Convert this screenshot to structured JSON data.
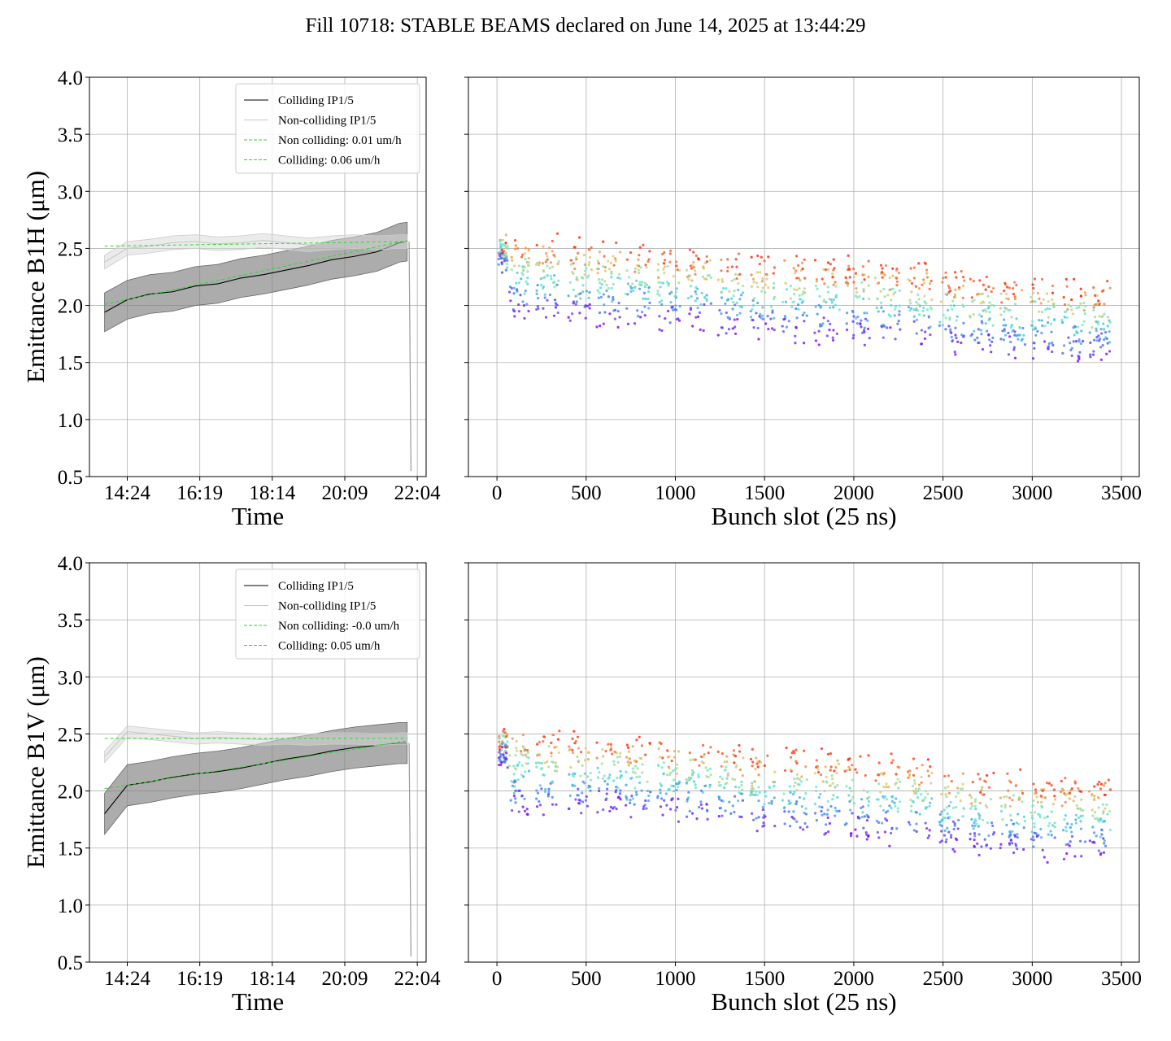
{
  "figure": {
    "title": "Fill 10718: STABLE BEAMS declared on June 14, 2025 at 13:44:29"
  },
  "chart_data": [
    {
      "type": "line",
      "panel": "top-left",
      "xlabel": "Time",
      "ylabel": "Emittance B1H (μm)",
      "ylim": [
        0.5,
        4.0
      ],
      "yticks": [
        "0.5",
        "1.0",
        "1.5",
        "2.0",
        "2.5",
        "3.0",
        "3.5",
        "4.0"
      ],
      "xticks": [
        "14:24",
        "16:19",
        "18:14",
        "20:09",
        "22:04"
      ],
      "xlim_hours": [
        13.4,
        22.3
      ],
      "grid": true,
      "legend_position": "top-right",
      "legend": [
        "Colliding IP1/5",
        "Non-colliding IP1/5",
        "Non colliding: 0.01 um/h",
        "Colliding: 0.06 um/h"
      ],
      "x_hours": [
        13.8,
        14.4,
        15.0,
        15.6,
        16.2,
        16.8,
        17.4,
        18.0,
        18.6,
        19.2,
        19.8,
        20.4,
        21.0,
        21.6,
        21.8
      ],
      "series": [
        {
          "name": "Colliding IP1/5",
          "color": "#000000",
          "values": [
            1.94,
            2.05,
            2.1,
            2.12,
            2.17,
            2.19,
            2.24,
            2.27,
            2.31,
            2.35,
            2.4,
            2.43,
            2.47,
            2.55,
            2.56
          ],
          "band_half_width": 0.17
        },
        {
          "name": "Non-colliding IP1/5",
          "color": "#c8c8c8",
          "values": [
            2.38,
            2.5,
            2.52,
            2.55,
            2.56,
            2.54,
            2.55,
            2.57,
            2.55,
            2.53,
            2.55,
            2.56,
            2.55,
            2.56,
            2.56
          ],
          "band_half_width": 0.06
        },
        {
          "name": "Non colliding: 0.01 um/h",
          "color": "#22dd22",
          "dashed": true,
          "x_hours": [
            13.8,
            21.8
          ],
          "values": [
            2.52,
            2.56
          ]
        },
        {
          "name": "Colliding: 0.06 um/h",
          "color": "#22dd22",
          "dashed": true,
          "x_hours": [
            13.8,
            21.8
          ],
          "values": [
            2.01,
            2.57
          ]
        }
      ]
    },
    {
      "type": "scatter",
      "panel": "top-right",
      "xlabel": "Bunch slot (25 ns)",
      "ylabel": "",
      "xlim": [
        -160,
        3600
      ],
      "ylim": [
        0.5,
        4.0
      ],
      "xticks": [
        "0",
        "500",
        "1000",
        "1500",
        "2000",
        "2500",
        "3000",
        "3500"
      ],
      "grid": true,
      "colormap": "rainbow (time: early = red, late = purple)",
      "trains": [
        {
          "x_start": 10,
          "x_end": 60,
          "red": 2.55,
          "purple": 2.35
        },
        {
          "x_start": 70,
          "x_end": 180,
          "red": 2.55,
          "purple": 1.95
        },
        {
          "x_start": 220,
          "x_end": 350,
          "red": 2.55,
          "purple": 1.95
        },
        {
          "x_start": 400,
          "x_end": 530,
          "red": 2.5,
          "purple": 1.9
        },
        {
          "x_start": 560,
          "x_end": 700,
          "red": 2.5,
          "purple": 1.9
        },
        {
          "x_start": 720,
          "x_end": 860,
          "red": 2.48,
          "purple": 1.88
        },
        {
          "x_start": 900,
          "x_end": 1030,
          "red": 2.45,
          "purple": 1.85
        },
        {
          "x_start": 1060,
          "x_end": 1200,
          "red": 2.45,
          "purple": 1.85
        },
        {
          "x_start": 1240,
          "x_end": 1380,
          "red": 2.4,
          "purple": 1.8
        },
        {
          "x_start": 1420,
          "x_end": 1560,
          "red": 2.38,
          "purple": 1.78
        },
        {
          "x_start": 1600,
          "x_end": 1740,
          "red": 2.38,
          "purple": 1.75
        },
        {
          "x_start": 1780,
          "x_end": 1920,
          "red": 2.35,
          "purple": 1.75
        },
        {
          "x_start": 1950,
          "x_end": 2090,
          "red": 2.35,
          "purple": 1.72
        },
        {
          "x_start": 2120,
          "x_end": 2260,
          "red": 2.33,
          "purple": 1.72
        },
        {
          "x_start": 2300,
          "x_end": 2440,
          "red": 2.3,
          "purple": 1.7
        },
        {
          "x_start": 2480,
          "x_end": 2620,
          "red": 2.25,
          "purple": 1.65
        },
        {
          "x_start": 2650,
          "x_end": 2790,
          "red": 2.2,
          "purple": 1.65
        },
        {
          "x_start": 2820,
          "x_end": 2960,
          "red": 2.18,
          "purple": 1.6
        },
        {
          "x_start": 2990,
          "x_end": 3130,
          "red": 2.18,
          "purple": 1.6
        },
        {
          "x_start": 3160,
          "x_end": 3300,
          "red": 2.15,
          "purple": 1.58
        },
        {
          "x_start": 3320,
          "x_end": 3440,
          "red": 2.15,
          "purple": 1.55
        }
      ]
    },
    {
      "type": "line",
      "panel": "bottom-left",
      "xlabel": "Time",
      "ylabel": "Emittance B1V (μm)",
      "ylim": [
        0.5,
        4.0
      ],
      "yticks": [
        "0.5",
        "1.0",
        "1.5",
        "2.0",
        "2.5",
        "3.0",
        "3.5",
        "4.0"
      ],
      "xticks": [
        "14:24",
        "16:19",
        "18:14",
        "20:09",
        "22:04"
      ],
      "xlim_hours": [
        13.4,
        22.3
      ],
      "grid": true,
      "legend_position": "top-right",
      "legend": [
        "Colliding IP1/5",
        "Non-colliding IP1/5",
        "Non colliding: -0.0 um/h",
        "Colliding: 0.05 um/h"
      ],
      "x_hours": [
        13.8,
        14.4,
        15.0,
        15.6,
        16.2,
        16.8,
        17.4,
        18.0,
        18.6,
        19.2,
        19.8,
        20.4,
        21.0,
        21.6,
        21.8
      ],
      "series": [
        {
          "name": "Colliding IP1/5",
          "color": "#000000",
          "values": [
            1.8,
            2.05,
            2.08,
            2.12,
            2.15,
            2.17,
            2.2,
            2.24,
            2.28,
            2.31,
            2.35,
            2.38,
            2.4,
            2.42,
            2.42
          ],
          "band_half_width": 0.18
        },
        {
          "name": "Non-colliding IP1/5",
          "color": "#c8c8c8",
          "values": [
            2.3,
            2.52,
            2.5,
            2.48,
            2.46,
            2.47,
            2.46,
            2.45,
            2.46,
            2.45,
            2.46,
            2.46,
            2.45,
            2.46,
            2.46
          ],
          "band_half_width": 0.05
        },
        {
          "name": "Non colliding: -0.0 um/h",
          "color": "#22dd22",
          "dashed": true,
          "x_hours": [
            13.8,
            21.8
          ],
          "values": [
            2.46,
            2.46
          ]
        },
        {
          "name": "Colliding: 0.05 um/h",
          "color": "#22dd22",
          "dashed": true,
          "x_hours": [
            13.8,
            21.8
          ],
          "values": [
            2.02,
            2.44
          ]
        }
      ]
    },
    {
      "type": "scatter",
      "panel": "bottom-right",
      "xlabel": "Bunch slot (25 ns)",
      "ylabel": "",
      "xlim": [
        -160,
        3600
      ],
      "ylim": [
        0.5,
        4.0
      ],
      "xticks": [
        "0",
        "500",
        "1000",
        "1500",
        "2000",
        "2500",
        "3000",
        "3500"
      ],
      "grid": true,
      "colormap": "rainbow (time: early = red, late = purple)",
      "trains": [
        {
          "x_start": 10,
          "x_end": 60,
          "red": 2.45,
          "purple": 2.3
        },
        {
          "x_start": 70,
          "x_end": 180,
          "red": 2.5,
          "purple": 1.85
        },
        {
          "x_start": 220,
          "x_end": 350,
          "red": 2.5,
          "purple": 1.85
        },
        {
          "x_start": 400,
          "x_end": 530,
          "red": 2.45,
          "purple": 1.85
        },
        {
          "x_start": 560,
          "x_end": 700,
          "red": 2.45,
          "purple": 1.85
        },
        {
          "x_start": 720,
          "x_end": 860,
          "red": 2.4,
          "purple": 1.8
        },
        {
          "x_start": 900,
          "x_end": 1030,
          "red": 2.4,
          "purple": 1.8
        },
        {
          "x_start": 1060,
          "x_end": 1200,
          "red": 2.4,
          "purple": 1.78
        },
        {
          "x_start": 1240,
          "x_end": 1380,
          "red": 2.35,
          "purple": 1.75
        },
        {
          "x_start": 1420,
          "x_end": 1560,
          "red": 2.3,
          "purple": 1.7
        },
        {
          "x_start": 1600,
          "x_end": 1740,
          "red": 2.3,
          "purple": 1.68
        },
        {
          "x_start": 1780,
          "x_end": 1920,
          "red": 2.28,
          "purple": 1.66
        },
        {
          "x_start": 1950,
          "x_end": 2090,
          "red": 2.28,
          "purple": 1.65
        },
        {
          "x_start": 2120,
          "x_end": 2260,
          "red": 2.25,
          "purple": 1.62
        },
        {
          "x_start": 2300,
          "x_end": 2440,
          "red": 2.23,
          "purple": 1.6
        },
        {
          "x_start": 2480,
          "x_end": 2620,
          "red": 2.18,
          "purple": 1.55
        },
        {
          "x_start": 2650,
          "x_end": 2790,
          "red": 2.1,
          "purple": 1.5
        },
        {
          "x_start": 2820,
          "x_end": 2960,
          "red": 2.1,
          "purple": 1.48
        },
        {
          "x_start": 2990,
          "x_end": 3130,
          "red": 2.08,
          "purple": 1.47
        },
        {
          "x_start": 3160,
          "x_end": 3300,
          "red": 2.08,
          "purple": 1.45
        },
        {
          "x_start": 3320,
          "x_end": 3440,
          "red": 2.05,
          "purple": 1.45
        }
      ]
    }
  ]
}
